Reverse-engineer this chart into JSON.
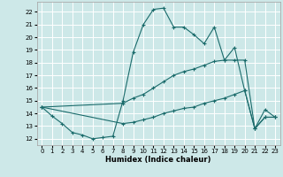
{
  "xlabel": "Humidex (Indice chaleur)",
  "x_ticks": [
    0,
    1,
    2,
    3,
    4,
    5,
    6,
    7,
    8,
    9,
    10,
    11,
    12,
    13,
    14,
    15,
    16,
    17,
    18,
    19,
    20,
    21,
    22,
    23
  ],
  "ylim": [
    11.5,
    22.8
  ],
  "xlim": [
    -0.5,
    23.5
  ],
  "y_ticks": [
    12,
    13,
    14,
    15,
    16,
    17,
    18,
    19,
    20,
    21,
    22
  ],
  "bg_color": "#cde8e8",
  "line_color": "#1a6b6b",
  "grid_color": "#ffffff",
  "lines": [
    {
      "x": [
        0,
        1,
        2,
        3,
        4,
        5,
        6,
        7,
        8,
        9,
        10,
        11,
        12,
        13,
        14,
        15,
        16,
        17,
        18,
        19,
        20,
        21,
        22,
        23
      ],
      "y": [
        14.5,
        13.8,
        13.2,
        12.5,
        12.3,
        12.0,
        12.1,
        12.2,
        15.0,
        18.8,
        21.0,
        22.2,
        22.3,
        20.8,
        20.8,
        20.2,
        19.5,
        20.8,
        18.2,
        19.2,
        15.8,
        12.8,
        14.3,
        13.7
      ]
    },
    {
      "x": [
        0,
        8,
        9,
        10,
        11,
        12,
        13,
        14,
        15,
        16,
        17,
        18,
        19,
        20,
        21,
        22,
        23
      ],
      "y": [
        14.5,
        14.8,
        15.2,
        15.5,
        16.0,
        16.5,
        17.0,
        17.3,
        17.5,
        17.8,
        18.1,
        18.2,
        18.2,
        18.2,
        12.8,
        13.7,
        13.7
      ]
    },
    {
      "x": [
        0,
        8,
        9,
        10,
        11,
        12,
        13,
        14,
        15,
        16,
        17,
        18,
        19,
        20,
        21,
        22,
        23
      ],
      "y": [
        14.5,
        13.2,
        13.3,
        13.5,
        13.7,
        14.0,
        14.2,
        14.4,
        14.5,
        14.8,
        15.0,
        15.2,
        15.5,
        15.8,
        12.8,
        13.7,
        13.7
      ]
    }
  ]
}
